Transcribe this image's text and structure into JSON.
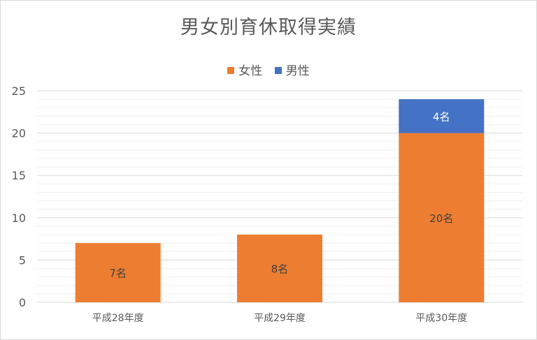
{
  "chart_data": {
    "type": "bar",
    "stacked": true,
    "title": "男女別育休取得実績",
    "categories": [
      "平成28年度",
      "平成29年度",
      "平成30年度"
    ],
    "series": [
      {
        "name": "女性",
        "values": [
          7,
          8,
          20
        ],
        "labels": [
          "7名",
          "8名",
          "20名"
        ],
        "color": "#ed7d31"
      },
      {
        "name": "男性",
        "values": [
          0,
          0,
          4
        ],
        "labels": [
          "",
          "",
          "4名"
        ],
        "color": "#4472c4"
      }
    ],
    "ylim": [
      0,
      25
    ],
    "yticks": [
      0,
      5,
      10,
      15,
      20,
      25
    ],
    "ytick_labels": [
      "0",
      "5",
      "10",
      "15",
      "20",
      "25"
    ],
    "grid": true,
    "legend_position": "top"
  }
}
